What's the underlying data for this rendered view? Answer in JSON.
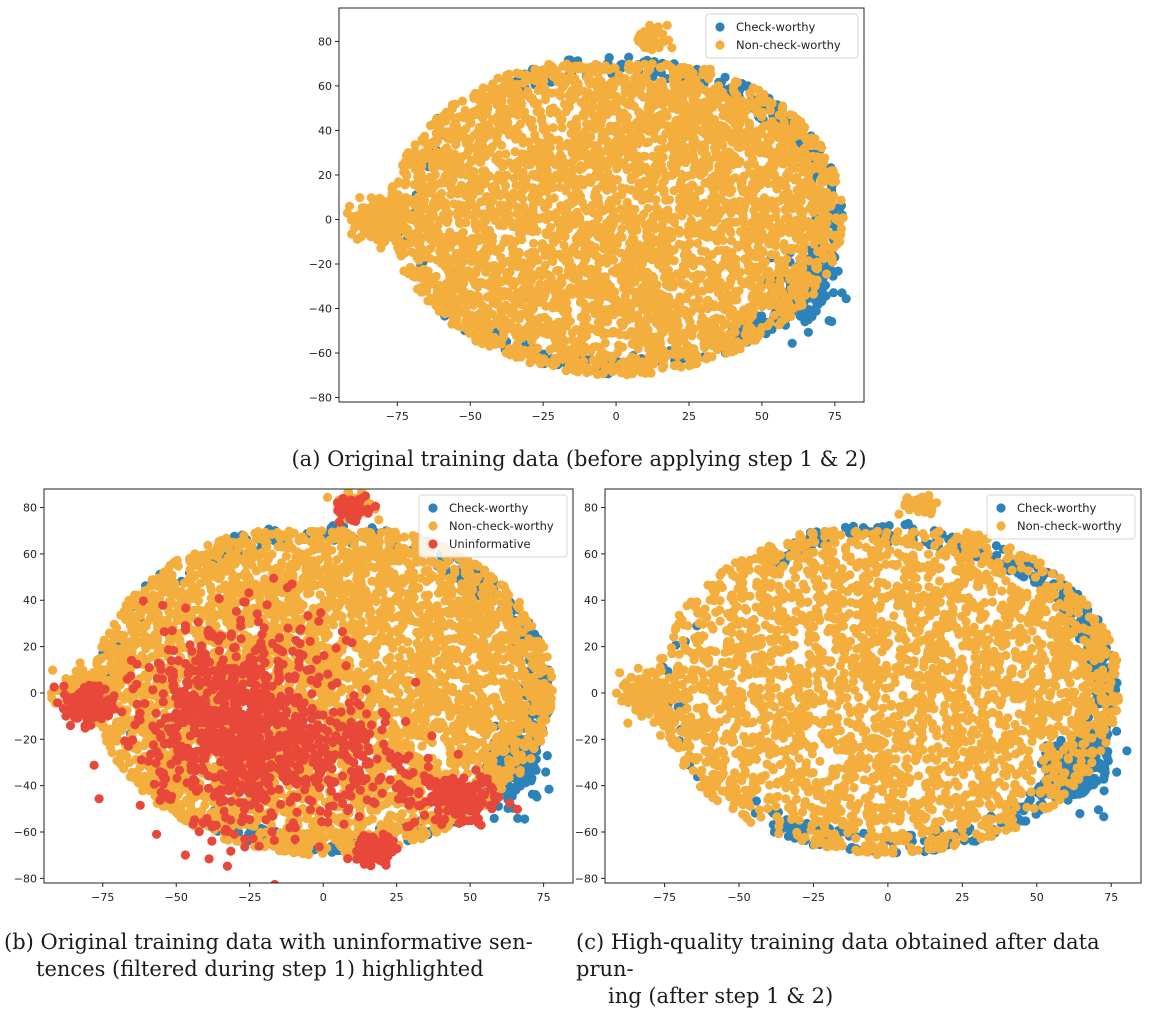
{
  "colors": {
    "check_worthy": "#2b83ba",
    "non_check_worthy": "#f4ae3d",
    "uninformative": "#e8483a"
  },
  "captions": {
    "a": "(a) Original training data (before applying step 1 & 2)",
    "b_line1": "(b) Original training data with uninformative sen-",
    "b_line2": "tences (filtered during step 1) highlighted",
    "c_line1": "(c) High-quality training data obtained after data prun-",
    "c_line2": "ing (after step 1 & 2)"
  },
  "chart_data": [
    {
      "id": "a",
      "type": "scatter",
      "title": "",
      "xlabel": "",
      "ylabel": "",
      "xlim": [
        -95,
        85
      ],
      "ylim": [
        -82,
        95
      ],
      "xticks": [
        -75,
        -50,
        -25,
        0,
        25,
        50,
        75
      ],
      "yticks": [
        -80,
        -60,
        -40,
        -20,
        0,
        20,
        40,
        60,
        80
      ],
      "grid": false,
      "legend_position": "top-right",
      "series": [
        {
          "name": "Check-worthy",
          "color": "#2b83ba",
          "cluster_centers": [
            [
              62,
              -35
            ],
            [
              70,
              10
            ],
            [
              60,
              55
            ],
            [
              15,
              -65
            ],
            [
              -30,
              60
            ],
            [
              40,
              65
            ]
          ],
          "point_count": 600
        },
        {
          "name": "Non-check-worthy",
          "color": "#f4ae3d",
          "cluster_centers": [
            [
              0,
              5
            ],
            [
              -80,
              0
            ],
            [
              12,
              80
            ],
            [
              -25,
              -60
            ],
            [
              10,
              -68
            ]
          ],
          "point_count": 4200
        }
      ]
    },
    {
      "id": "b",
      "type": "scatter",
      "title": "",
      "xlabel": "",
      "ylabel": "",
      "xlim": [
        -95,
        85
      ],
      "ylim": [
        -82,
        88
      ],
      "xticks": [
        -75,
        -50,
        -25,
        0,
        25,
        50,
        75
      ],
      "yticks": [
        -80,
        -60,
        -40,
        -20,
        0,
        20,
        40,
        60,
        80
      ],
      "grid": false,
      "legend_position": "top-right",
      "series": [
        {
          "name": "Check-worthy",
          "color": "#2b83ba",
          "cluster_centers": [
            [
              65,
              -30
            ],
            [
              70,
              10
            ],
            [
              60,
              50
            ],
            [
              20,
              65
            ]
          ],
          "point_count": 600
        },
        {
          "name": "Non-check-worthy",
          "color": "#f4ae3d",
          "cluster_centers": [
            [
              0,
              5
            ],
            [
              -80,
              0
            ],
            [
              10,
              80
            ]
          ],
          "point_count": 4200
        },
        {
          "name": "Uninformative",
          "color": "#e8483a",
          "cluster_centers": [
            [
              -30,
              -15
            ],
            [
              -80,
              -5
            ],
            [
              10,
              80
            ],
            [
              20,
              -35
            ],
            [
              45,
              -45
            ]
          ],
          "point_count": 1500
        }
      ]
    },
    {
      "id": "c",
      "type": "scatter",
      "title": "",
      "xlabel": "",
      "ylabel": "",
      "xlim": [
        -95,
        85
      ],
      "ylim": [
        -82,
        88
      ],
      "xticks": [
        -75,
        -50,
        -25,
        0,
        25,
        50,
        75
      ],
      "yticks": [
        -80,
        -60,
        -40,
        -20,
        0,
        20,
        40,
        60,
        80
      ],
      "grid": false,
      "legend_position": "top-right",
      "series": [
        {
          "name": "Check-worthy",
          "color": "#2b83ba",
          "cluster_centers": [
            [
              65,
              -30
            ],
            [
              70,
              10
            ],
            [
              60,
              50
            ],
            [
              -30,
              60
            ],
            [
              20,
              65
            ]
          ],
          "point_count": 700
        },
        {
          "name": "Non-check-worthy",
          "color": "#f4ae3d",
          "cluster_centers": [
            [
              0,
              5
            ],
            [
              -80,
              0
            ],
            [
              12,
              80
            ],
            [
              -20,
              -55
            ]
          ],
          "point_count": 3000
        }
      ]
    }
  ]
}
